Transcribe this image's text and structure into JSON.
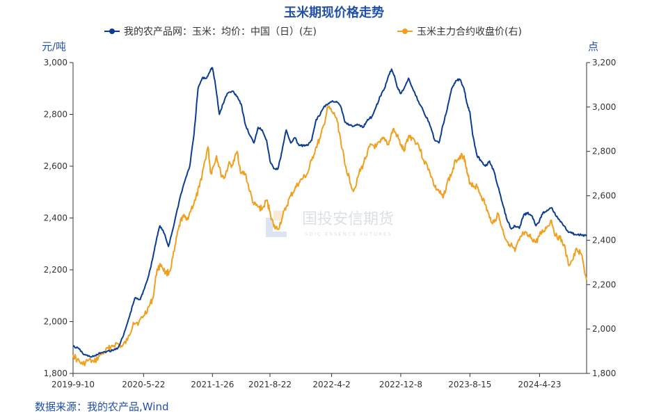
{
  "chart_data": {
    "type": "line",
    "title": "玉米期现价格走势",
    "left_unit": "元/吨",
    "right_unit": "点",
    "source": "数据来源：我的农产品,Wind",
    "watermark": {
      "cn": "国投安信期货",
      "en": "SDIC ESSENCE FUTURES"
    },
    "x_range": [
      "2019-09-10",
      "2024-10-10"
    ],
    "x_ticks": [
      "2019-9-10",
      "2020-5-22",
      "2021-1-26",
      "2021-8-22",
      "2022-4-2",
      "2022-12-8",
      "2023-8-15",
      "2024-4-23"
    ],
    "y_left": {
      "min": 1800,
      "max": 3000,
      "ticks": [
        "1,800",
        "2,000",
        "2,200",
        "2,400",
        "2,600",
        "2,800",
        "3,000"
      ]
    },
    "y_right": {
      "min": 1800,
      "max": 3200,
      "ticks": [
        "1,800",
        "2,000",
        "2,200",
        "2,400",
        "2,600",
        "2,800",
        "3,000",
        "3,200"
      ]
    },
    "grid": false,
    "legend_position": "top",
    "series": [
      {
        "name": "我的农产品网：玉米：均价：中国（日）(左)",
        "axis": "left",
        "color": "#0a3d91",
        "points": [
          [
            "2019-09-10",
            1905
          ],
          [
            "2019-10-01",
            1895
          ],
          [
            "2019-10-20",
            1872
          ],
          [
            "2019-11-10",
            1865
          ],
          [
            "2019-12-01",
            1868
          ],
          [
            "2019-12-20",
            1880
          ],
          [
            "2020-01-10",
            1885
          ],
          [
            "2020-02-01",
            1888
          ],
          [
            "2020-02-20",
            1900
          ],
          [
            "2020-03-10",
            1945
          ],
          [
            "2020-04-01",
            2020
          ],
          [
            "2020-04-20",
            2090
          ],
          [
            "2020-05-10",
            2085
          ],
          [
            "2020-05-22",
            2120
          ],
          [
            "2020-06-10",
            2180
          ],
          [
            "2020-06-25",
            2250
          ],
          [
            "2020-07-10",
            2330
          ],
          [
            "2020-07-20",
            2370
          ],
          [
            "2020-08-05",
            2340
          ],
          [
            "2020-08-20",
            2290
          ],
          [
            "2020-09-10",
            2380
          ],
          [
            "2020-10-01",
            2480
          ],
          [
            "2020-10-20",
            2550
          ],
          [
            "2020-11-05",
            2600
          ],
          [
            "2020-11-20",
            2720
          ],
          [
            "2020-12-05",
            2900
          ],
          [
            "2020-12-20",
            2940
          ],
          [
            "2021-01-05",
            2940
          ],
          [
            "2021-01-20",
            2975
          ],
          [
            "2021-01-26",
            2980
          ],
          [
            "2021-02-05",
            2920
          ],
          [
            "2021-02-20",
            2800
          ],
          [
            "2021-03-05",
            2840
          ],
          [
            "2021-03-20",
            2880
          ],
          [
            "2021-04-10",
            2890
          ],
          [
            "2021-04-25",
            2870
          ],
          [
            "2021-05-10",
            2840
          ],
          [
            "2021-05-25",
            2760
          ],
          [
            "2021-06-10",
            2720
          ],
          [
            "2021-06-25",
            2690
          ],
          [
            "2021-07-10",
            2750
          ],
          [
            "2021-07-25",
            2740
          ],
          [
            "2021-08-10",
            2700
          ],
          [
            "2021-08-22",
            2620
          ],
          [
            "2021-09-05",
            2590
          ],
          [
            "2021-09-20",
            2590
          ],
          [
            "2021-10-05",
            2660
          ],
          [
            "2021-10-20",
            2740
          ],
          [
            "2021-11-05",
            2690
          ],
          [
            "2021-11-20",
            2710
          ],
          [
            "2021-12-05",
            2680
          ],
          [
            "2021-12-20",
            2680
          ],
          [
            "2022-01-05",
            2680
          ],
          [
            "2022-01-20",
            2700
          ],
          [
            "2022-02-05",
            2780
          ],
          [
            "2022-02-20",
            2800
          ],
          [
            "2022-03-05",
            2830
          ],
          [
            "2022-03-20",
            2840
          ],
          [
            "2022-04-02",
            2850
          ],
          [
            "2022-04-20",
            2850
          ],
          [
            "2022-05-05",
            2830
          ],
          [
            "2022-05-20",
            2770
          ],
          [
            "2022-06-05",
            2760
          ],
          [
            "2022-06-20",
            2755
          ],
          [
            "2022-07-10",
            2760
          ],
          [
            "2022-07-25",
            2750
          ],
          [
            "2022-08-10",
            2780
          ],
          [
            "2022-08-25",
            2790
          ],
          [
            "2022-09-10",
            2830
          ],
          [
            "2022-09-25",
            2870
          ],
          [
            "2022-10-10",
            2900
          ],
          [
            "2022-10-25",
            2950
          ],
          [
            "2022-11-05",
            2975
          ],
          [
            "2022-11-15",
            2950
          ],
          [
            "2022-11-25",
            2905
          ],
          [
            "2022-12-08",
            2880
          ],
          [
            "2022-12-20",
            2900
          ],
          [
            "2023-01-05",
            2940
          ],
          [
            "2023-01-20",
            2900
          ],
          [
            "2023-02-10",
            2850
          ],
          [
            "2023-03-01",
            2810
          ],
          [
            "2023-03-20",
            2770
          ],
          [
            "2023-04-10",
            2700
          ],
          [
            "2023-04-25",
            2690
          ],
          [
            "2023-05-10",
            2760
          ],
          [
            "2023-05-25",
            2820
          ],
          [
            "2023-06-10",
            2900
          ],
          [
            "2023-06-25",
            2930
          ],
          [
            "2023-07-10",
            2935
          ],
          [
            "2023-07-25",
            2900
          ],
          [
            "2023-08-05",
            2840
          ],
          [
            "2023-08-15",
            2810
          ],
          [
            "2023-08-25",
            2720
          ],
          [
            "2023-09-10",
            2640
          ],
          [
            "2023-09-25",
            2620
          ],
          [
            "2023-10-10",
            2600
          ],
          [
            "2023-10-25",
            2620
          ],
          [
            "2023-11-10",
            2580
          ],
          [
            "2023-11-25",
            2520
          ],
          [
            "2023-12-10",
            2460
          ],
          [
            "2023-12-25",
            2400
          ],
          [
            "2024-01-10",
            2360
          ],
          [
            "2024-01-25",
            2370
          ],
          [
            "2024-02-10",
            2360
          ],
          [
            "2024-02-25",
            2410
          ],
          [
            "2024-03-10",
            2420
          ],
          [
            "2024-03-25",
            2410
          ],
          [
            "2024-04-10",
            2370
          ],
          [
            "2024-04-23",
            2390
          ],
          [
            "2024-05-05",
            2420
          ],
          [
            "2024-05-20",
            2430
          ],
          [
            "2024-06-05",
            2440
          ],
          [
            "2024-06-20",
            2410
          ],
          [
            "2024-07-05",
            2390
          ],
          [
            "2024-07-20",
            2370
          ],
          [
            "2024-08-05",
            2345
          ],
          [
            "2024-08-20",
            2340
          ],
          [
            "2024-09-05",
            2335
          ],
          [
            "2024-09-20",
            2335
          ],
          [
            "2024-10-10",
            2330
          ]
        ]
      },
      {
        "name": "玉米主力合约收盘价(右)",
        "axis": "right",
        "color": "#f0a01e",
        "points": [
          [
            "2019-09-10",
            1885
          ],
          [
            "2019-09-25",
            1860
          ],
          [
            "2019-10-15",
            1840
          ],
          [
            "2019-11-05",
            1860
          ],
          [
            "2019-11-25",
            1850
          ],
          [
            "2019-12-15",
            1880
          ],
          [
            "2020-01-05",
            1900
          ],
          [
            "2020-01-25",
            1920
          ],
          [
            "2020-02-15",
            1935
          ],
          [
            "2020-03-05",
            1920
          ],
          [
            "2020-03-25",
            1950
          ],
          [
            "2020-04-15",
            2030
          ],
          [
            "2020-05-05",
            2030
          ],
          [
            "2020-05-22",
            2060
          ],
          [
            "2020-06-10",
            2100
          ],
          [
            "2020-06-25",
            2140
          ],
          [
            "2020-07-10",
            2270
          ],
          [
            "2020-07-25",
            2290
          ],
          [
            "2020-08-10",
            2250
          ],
          [
            "2020-08-25",
            2260
          ],
          [
            "2020-09-10",
            2350
          ],
          [
            "2020-09-25",
            2450
          ],
          [
            "2020-10-10",
            2510
          ],
          [
            "2020-10-25",
            2490
          ],
          [
            "2020-11-10",
            2540
          ],
          [
            "2020-11-25",
            2580
          ],
          [
            "2020-12-10",
            2640
          ],
          [
            "2020-12-25",
            2730
          ],
          [
            "2021-01-10",
            2820
          ],
          [
            "2021-01-20",
            2700
          ],
          [
            "2021-01-26",
            2720
          ],
          [
            "2021-02-10",
            2780
          ],
          [
            "2021-02-25",
            2700
          ],
          [
            "2021-03-10",
            2680
          ],
          [
            "2021-03-25",
            2740
          ],
          [
            "2021-04-10",
            2740
          ],
          [
            "2021-04-25",
            2800
          ],
          [
            "2021-05-10",
            2700
          ],
          [
            "2021-05-25",
            2700
          ],
          [
            "2021-06-10",
            2620
          ],
          [
            "2021-06-25",
            2560
          ],
          [
            "2021-07-10",
            2550
          ],
          [
            "2021-07-25",
            2540
          ],
          [
            "2021-08-10",
            2580
          ],
          [
            "2021-08-22",
            2530
          ],
          [
            "2021-09-05",
            2460
          ],
          [
            "2021-09-20",
            2450
          ],
          [
            "2021-10-05",
            2500
          ],
          [
            "2021-10-20",
            2550
          ],
          [
            "2021-11-05",
            2600
          ],
          [
            "2021-11-20",
            2630
          ],
          [
            "2021-12-05",
            2660
          ],
          [
            "2021-12-20",
            2680
          ],
          [
            "2022-01-05",
            2700
          ],
          [
            "2022-01-20",
            2760
          ],
          [
            "2022-02-05",
            2820
          ],
          [
            "2022-02-20",
            2860
          ],
          [
            "2022-03-05",
            2920
          ],
          [
            "2022-03-20",
            3000
          ],
          [
            "2022-04-02",
            2980
          ],
          [
            "2022-04-20",
            2950
          ],
          [
            "2022-05-05",
            2850
          ],
          [
            "2022-05-20",
            2740
          ],
          [
            "2022-06-05",
            2680
          ],
          [
            "2022-06-20",
            2620
          ],
          [
            "2022-07-10",
            2700
          ],
          [
            "2022-07-25",
            2740
          ],
          [
            "2022-08-10",
            2800
          ],
          [
            "2022-08-25",
            2830
          ],
          [
            "2022-09-10",
            2820
          ],
          [
            "2022-09-25",
            2840
          ],
          [
            "2022-10-10",
            2860
          ],
          [
            "2022-10-25",
            2830
          ],
          [
            "2022-11-10",
            2900
          ],
          [
            "2022-11-25",
            2870
          ],
          [
            "2022-12-08",
            2830
          ],
          [
            "2022-12-20",
            2800
          ],
          [
            "2023-01-05",
            2870
          ],
          [
            "2023-01-20",
            2860
          ],
          [
            "2023-02-10",
            2830
          ],
          [
            "2023-03-01",
            2760
          ],
          [
            "2023-03-20",
            2720
          ],
          [
            "2023-04-10",
            2640
          ],
          [
            "2023-04-25",
            2620
          ],
          [
            "2023-05-10",
            2590
          ],
          [
            "2023-05-25",
            2660
          ],
          [
            "2023-06-10",
            2700
          ],
          [
            "2023-06-25",
            2760
          ],
          [
            "2023-07-10",
            2780
          ],
          [
            "2023-07-25",
            2780
          ],
          [
            "2023-08-05",
            2700
          ],
          [
            "2023-08-15",
            2660
          ],
          [
            "2023-08-25",
            2650
          ],
          [
            "2023-09-10",
            2640
          ],
          [
            "2023-09-25",
            2600
          ],
          [
            "2023-10-10",
            2560
          ],
          [
            "2023-10-25",
            2500
          ],
          [
            "2023-11-10",
            2480
          ],
          [
            "2023-11-25",
            2520
          ],
          [
            "2023-12-10",
            2450
          ],
          [
            "2023-12-25",
            2400
          ],
          [
            "2024-01-10",
            2380
          ],
          [
            "2024-01-25",
            2350
          ],
          [
            "2024-02-10",
            2400
          ],
          [
            "2024-02-25",
            2430
          ],
          [
            "2024-03-10",
            2420
          ],
          [
            "2024-03-25",
            2410
          ],
          [
            "2024-04-10",
            2390
          ],
          [
            "2024-04-23",
            2420
          ],
          [
            "2024-05-05",
            2440
          ],
          [
            "2024-05-20",
            2460
          ],
          [
            "2024-06-05",
            2490
          ],
          [
            "2024-06-20",
            2420
          ],
          [
            "2024-07-05",
            2410
          ],
          [
            "2024-07-20",
            2380
          ],
          [
            "2024-08-05",
            2290
          ],
          [
            "2024-08-20",
            2310
          ],
          [
            "2024-09-05",
            2360
          ],
          [
            "2024-09-20",
            2340
          ],
          [
            "2024-10-10",
            2220
          ]
        ]
      }
    ]
  }
}
